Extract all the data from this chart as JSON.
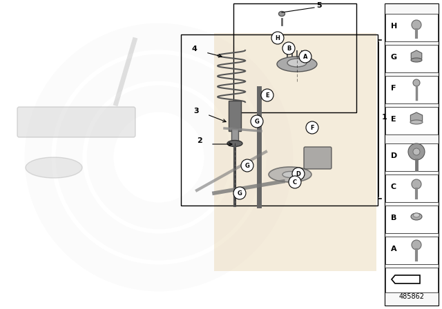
{
  "bg_color": "#ffffff",
  "border_color": "#000000",
  "text_color": "#000000",
  "part_number": "485862",
  "right_panel_labels": [
    "H",
    "G",
    "F",
    "E",
    "D",
    "C",
    "B",
    "A"
  ],
  "accent_color": "#e8d5b0"
}
